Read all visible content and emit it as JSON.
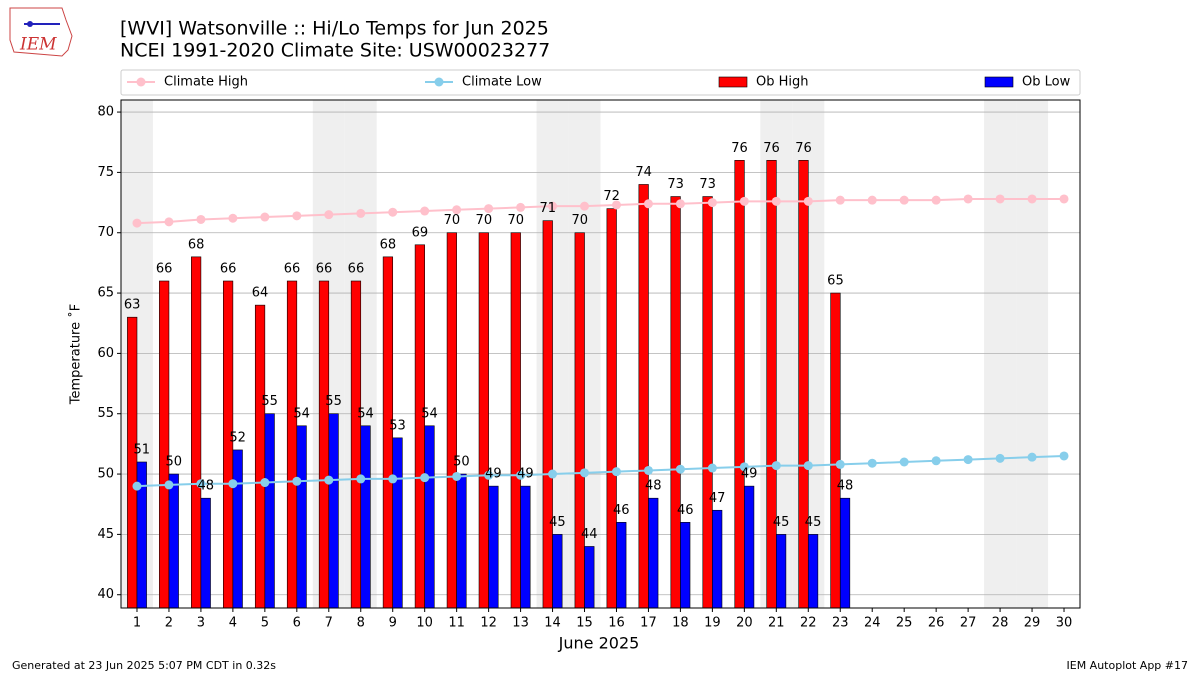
{
  "chart_data": {
    "type": "bar",
    "title": "[WVI] Watsonville :: Hi/Lo Temps for Jun 2025",
    "subtitle": "NCEI 1991-2020 Climate Site: USW00023277",
    "logo_text": "IEM",
    "xlabel": "June 2025",
    "ylabel": "Temperature ˚F",
    "footer_left": "Generated at 23 Jun 2025 5:07 PM CDT in 0.32s",
    "footer_right": "IEM Autoplot App #17",
    "x": [
      1,
      2,
      3,
      4,
      5,
      6,
      7,
      8,
      9,
      10,
      11,
      12,
      13,
      14,
      15,
      16,
      17,
      18,
      19,
      20,
      21,
      22,
      23,
      24,
      25,
      26,
      27,
      28,
      29,
      30
    ],
    "xlim": [
      0.5,
      30.5
    ],
    "xticks": [
      1,
      2,
      3,
      4,
      5,
      6,
      7,
      8,
      9,
      10,
      11,
      12,
      13,
      14,
      15,
      16,
      17,
      18,
      19,
      20,
      21,
      22,
      23,
      24,
      25,
      26,
      27,
      28,
      29,
      30
    ],
    "ylim": [
      38.9,
      81
    ],
    "yticks": [
      40,
      45,
      50,
      55,
      60,
      65,
      70,
      75,
      80
    ],
    "grid": true,
    "shaded_x": [
      1,
      7,
      8,
      14,
      15,
      21,
      22,
      28,
      29
    ],
    "shade_color": "#efefef",
    "series": [
      {
        "name": "Climate High",
        "type": "line",
        "color": "#ffc0cb",
        "values": [
          70.8,
          70.9,
          71.1,
          71.2,
          71.3,
          71.4,
          71.5,
          71.6,
          71.7,
          71.8,
          71.9,
          72.0,
          72.1,
          72.2,
          72.2,
          72.3,
          72.4,
          72.4,
          72.5,
          72.6,
          72.6,
          72.6,
          72.7,
          72.7,
          72.7,
          72.7,
          72.8,
          72.8,
          72.8,
          72.8
        ]
      },
      {
        "name": "Climate Low",
        "type": "line",
        "color": "#87ceeb",
        "values": [
          49.0,
          49.1,
          49.2,
          49.2,
          49.3,
          49.4,
          49.5,
          49.6,
          49.6,
          49.7,
          49.8,
          49.9,
          49.9,
          50.0,
          50.1,
          50.2,
          50.3,
          50.4,
          50.5,
          50.6,
          50.7,
          50.7,
          50.8,
          50.9,
          51.0,
          51.1,
          51.2,
          51.3,
          51.4,
          51.5
        ]
      },
      {
        "name": "Ob High",
        "type": "bar",
        "color": "#ff0000",
        "values": [
          63,
          66,
          68,
          66,
          64,
          66,
          66,
          66,
          68,
          69,
          70,
          70,
          70,
          71,
          70,
          72,
          74,
          73,
          73,
          76,
          76,
          76,
          65,
          null,
          null,
          null,
          null,
          null,
          null,
          null
        ]
      },
      {
        "name": "Ob Low",
        "type": "bar",
        "color": "#0000ff",
        "values": [
          51,
          50,
          48,
          52,
          55,
          54,
          55,
          54,
          53,
          54,
          50,
          49,
          49,
          45,
          44,
          46,
          48,
          46,
          47,
          49,
          45,
          45,
          48,
          null,
          null,
          null,
          null,
          null,
          null,
          null
        ]
      }
    ]
  }
}
